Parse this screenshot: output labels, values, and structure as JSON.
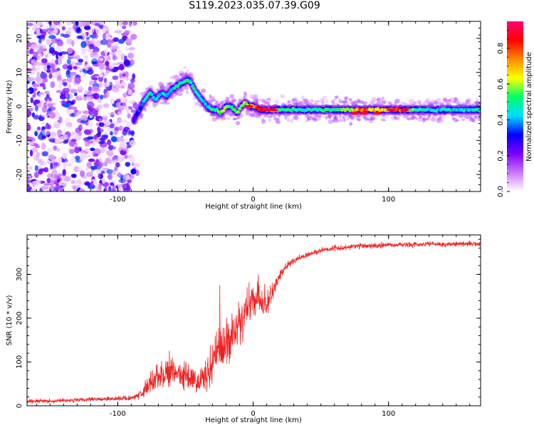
{
  "figure": {
    "title": "S119.2023.035.07.39.G09"
  },
  "chart_data": [
    {
      "type": "heatmap",
      "xlabel": "Height of straight line (km)",
      "ylabel": "Frequency (Hz)",
      "xlim": [
        -167,
        168
      ],
      "ylim": [
        -25,
        25
      ],
      "x_ticks": [
        -100,
        0,
        100
      ],
      "y_ticks": [
        -20,
        -10,
        0,
        10,
        20
      ],
      "colorbar": {
        "label": "Normalized spectral amplitude",
        "range": [
          0,
          0.95
        ],
        "ticks": [
          0.0,
          0.2,
          0.4,
          0.6,
          0.8
        ],
        "colors": [
          "#ffffff",
          "#cc77ff",
          "#7a00ff",
          "#0000ff",
          "#00ddff",
          "#00ff66",
          "#ffff00",
          "#ff8800",
          "#ff0000",
          "#ff0077"
        ]
      },
      "noise_region_x": [
        -167,
        -88
      ],
      "ridge": {
        "x": [
          -88,
          -84,
          -80,
          -76,
          -72,
          -68,
          -64,
          -60,
          -56,
          -52,
          -48,
          -46,
          -42,
          -38,
          -34,
          -30,
          -27,
          -24,
          -20,
          -16,
          -12,
          -9,
          -6,
          -3,
          0,
          5,
          10,
          20,
          30,
          40,
          50,
          60,
          70,
          80,
          90,
          100,
          110,
          120,
          130,
          140,
          150,
          160,
          168
        ],
        "freq": [
          -4,
          -1,
          2,
          4,
          2,
          4,
          3,
          5,
          6,
          7,
          8,
          7,
          4,
          2,
          0,
          -1,
          -1,
          -2,
          0,
          0,
          -2,
          0,
          1,
          0,
          0,
          -1,
          -1,
          -1,
          -1,
          -1,
          -1,
          -1,
          -1,
          -1,
          -1,
          -1,
          -1,
          -1,
          -1,
          -1,
          -1,
          -1,
          -1
        ],
        "amplitude": [
          0.25,
          0.35,
          0.45,
          0.5,
          0.4,
          0.45,
          0.45,
          0.4,
          0.5,
          0.45,
          0.55,
          0.5,
          0.45,
          0.45,
          0.45,
          0.5,
          0.55,
          0.55,
          0.6,
          0.55,
          0.55,
          0.6,
          0.6,
          0.6,
          0.75,
          0.8,
          0.8,
          0.55,
          0.5,
          0.5,
          0.5,
          0.5,
          0.6,
          0.8,
          0.7,
          0.7,
          0.85,
          0.5,
          0.45,
          0.45,
          0.45,
          0.45,
          0.45
        ]
      },
      "peaks": [
        {
          "x": -3,
          "freq": 0
        },
        {
          "x": 10,
          "freq": -1
        },
        {
          "x": 15,
          "freq": -1
        },
        {
          "x": 75,
          "freq": -2
        },
        {
          "x": 82,
          "freq": -2
        },
        {
          "x": 92,
          "freq": -2
        },
        {
          "x": 102,
          "freq": -1
        },
        {
          "x": 112,
          "freq": -1
        }
      ]
    },
    {
      "type": "line",
      "xlabel": "Height of straight line (km)",
      "ylabel": "SNR (10 * v/v)",
      "xlim": [
        -167,
        168
      ],
      "ylim": [
        0,
        390
      ],
      "x_ticks": [
        -100,
        0,
        100
      ],
      "y_ticks": [
        0,
        100,
        200,
        300
      ],
      "series": [
        {
          "color": "#ee2222",
          "x": [
            -167,
            -140,
            -110,
            -90,
            -82,
            -76,
            -70,
            -64,
            -58,
            -52,
            -46,
            -42,
            -38,
            -34,
            -28,
            -24,
            -20,
            -14,
            -8,
            -4,
            0,
            4,
            8,
            12,
            16,
            20,
            25,
            30,
            40,
            50,
            60,
            70,
            80,
            90,
            100,
            110,
            120,
            130,
            140,
            150,
            160,
            168
          ],
          "values": [
            10,
            12,
            15,
            18,
            28,
            50,
            70,
            75,
            80,
            70,
            60,
            55,
            60,
            75,
            110,
            130,
            140,
            170,
            210,
            225,
            240,
            250,
            220,
            240,
            275,
            300,
            320,
            330,
            345,
            355,
            360,
            362,
            365,
            365,
            367,
            368,
            368,
            370,
            368,
            370,
            370,
            370
          ],
          "spread": [
            8,
            8,
            8,
            10,
            18,
            40,
            50,
            55,
            50,
            50,
            45,
            45,
            50,
            70,
            90,
            90,
            90,
            80,
            90,
            80,
            70,
            60,
            50,
            40,
            30,
            18,
            15,
            12,
            10,
            10,
            10,
            10,
            10,
            10,
            10,
            10,
            10,
            10,
            10,
            10,
            10,
            10
          ]
        }
      ]
    }
  ]
}
